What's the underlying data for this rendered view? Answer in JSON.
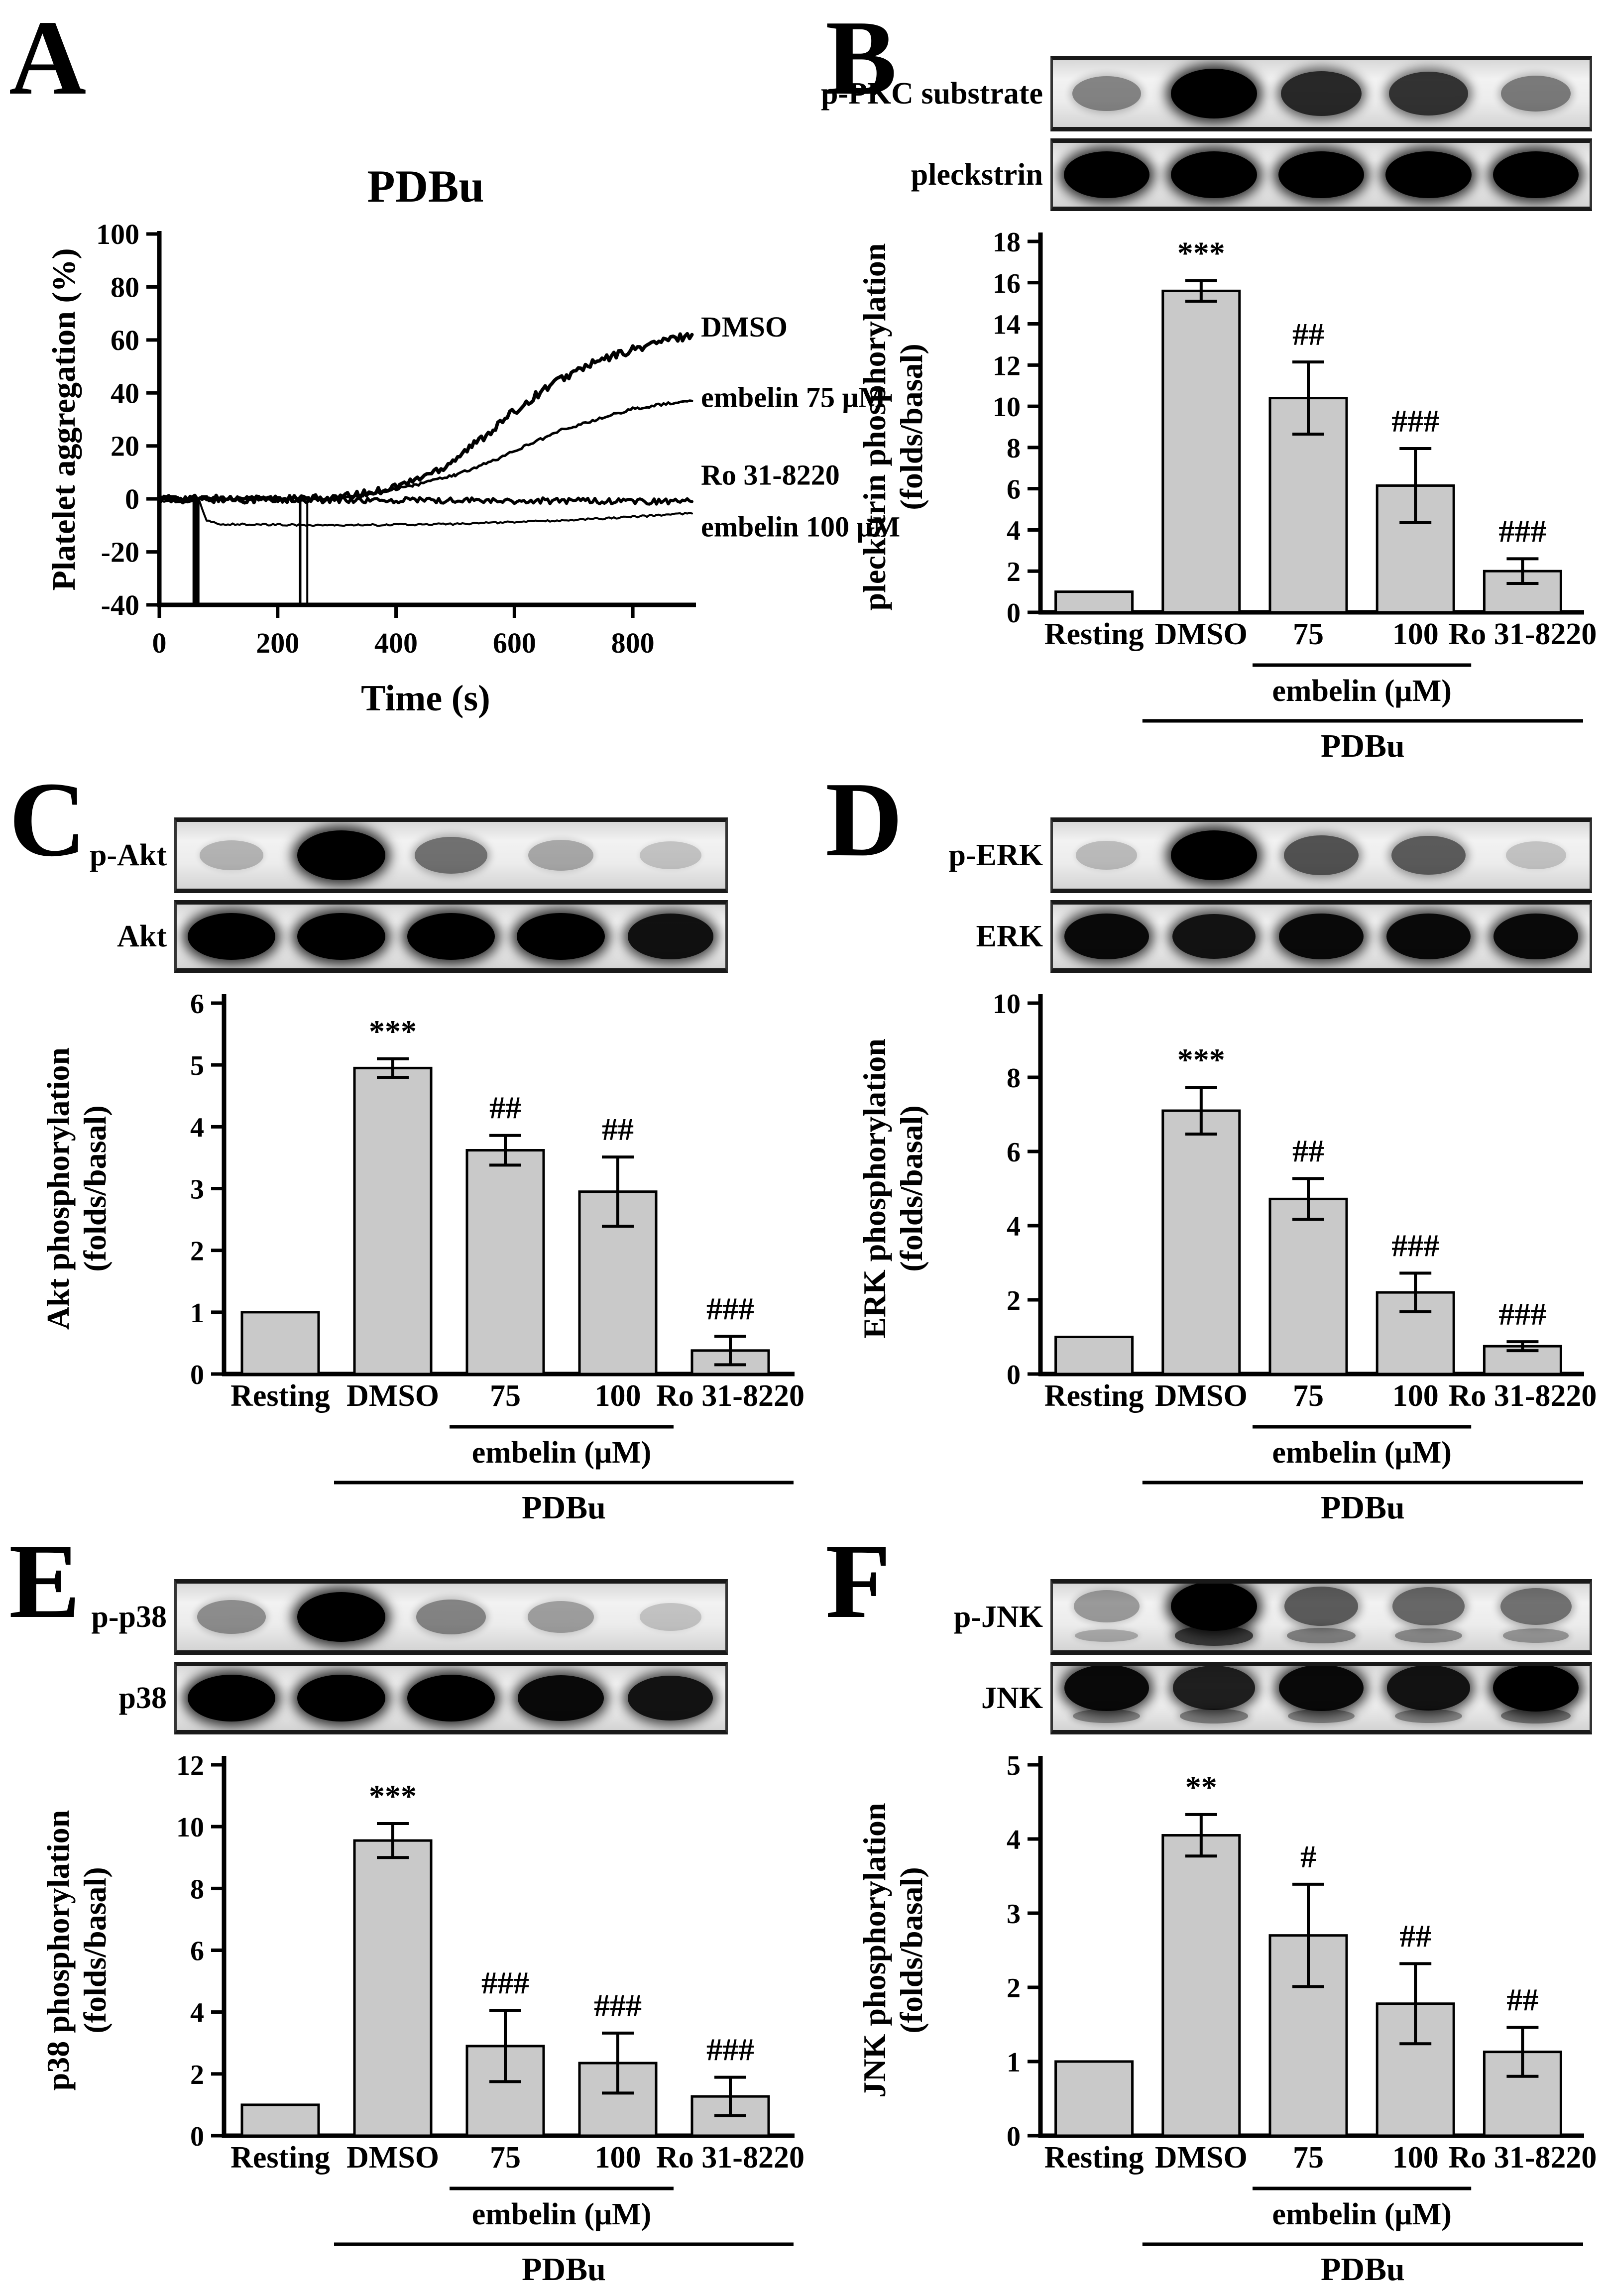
{
  "panels": {
    "A": {
      "letter": "A"
    },
    "B": {
      "letter": "B",
      "blots": [
        {
          "label": "p-PKC substrate",
          "bands": [
            0.35,
            1,
            0.8,
            0.75,
            0.4
          ]
        },
        {
          "label": "pleckstrin",
          "bands": [
            1,
            1,
            1,
            1,
            1
          ]
        }
      ]
    },
    "C": {
      "letter": "C",
      "blots": [
        {
          "label": "p-Akt",
          "bands": [
            0.12,
            1,
            0.45,
            0.18,
            0.05
          ]
        },
        {
          "label": "Akt",
          "bands": [
            1,
            1,
            1,
            1,
            0.92
          ]
        }
      ]
    },
    "D": {
      "letter": "D",
      "blots": [
        {
          "label": "p-ERK",
          "bands": [
            0.08,
            1,
            0.6,
            0.55,
            0.05
          ]
        },
        {
          "label": "ERK",
          "bands": [
            0.95,
            0.9,
            0.95,
            0.95,
            0.95
          ]
        }
      ]
    },
    "E": {
      "letter": "E",
      "blots": [
        {
          "label": "p-p38",
          "bands": [
            0.3,
            1,
            0.35,
            0.22,
            0.05
          ]
        },
        {
          "label": "p38",
          "bands": [
            1,
            1,
            1,
            0.95,
            0.9
          ]
        }
      ]
    },
    "F": {
      "letter": "F",
      "blots": [
        {
          "label": "p-JNK",
          "bands": [
            0.25,
            1,
            0.55,
            0.5,
            0.45
          ],
          "bands2": [
            0.15,
            0.7,
            0.35,
            0.3,
            0.25
          ]
        },
        {
          "label": "JNK",
          "bands": [
            0.95,
            0.85,
            0.95,
            0.9,
            1
          ],
          "bands2": [
            0.3,
            0.35,
            0.3,
            0.3,
            0.4
          ]
        }
      ]
    }
  },
  "chart_data": [
    {
      "panel": "A",
      "type": "line",
      "title": "PDBu",
      "xlabel": "Time (s)",
      "ylabel": "Platelet aggregation (%)",
      "xlim": [
        0,
        900
      ],
      "ylim": [
        -40,
        100
      ],
      "xticks": [
        0,
        200,
        400,
        600,
        800
      ],
      "ytick_step": 20,
      "series": [
        {
          "name": "DMSO",
          "stroke_width": 7,
          "noise": 1.5,
          "label_dy": -14,
          "points": [
            [
              0,
              0
            ],
            [
              290,
              0
            ],
            [
              350,
              2
            ],
            [
              420,
              6
            ],
            [
              480,
              12
            ],
            [
              540,
              22
            ],
            [
              600,
              33
            ],
            [
              660,
              43
            ],
            [
              720,
              50
            ],
            [
              780,
              55
            ],
            [
              840,
              59
            ],
            [
              900,
              62
            ]
          ]
        },
        {
          "name": "embelin 75 μM",
          "stroke_width": 5,
          "noise": 0.5,
          "label_dy": -6,
          "points": [
            [
              0,
              0
            ],
            [
              300,
              0
            ],
            [
              360,
              2
            ],
            [
              430,
              5
            ],
            [
              500,
              9
            ],
            [
              560,
              14
            ],
            [
              620,
              20
            ],
            [
              680,
              26
            ],
            [
              740,
              30
            ],
            [
              800,
              34
            ],
            [
              860,
              36
            ],
            [
              900,
              37
            ]
          ]
        },
        {
          "name": "Ro 31-8220",
          "stroke_width": 6,
          "noise": 1.1,
          "label_dy": -52,
          "points": [
            [
              0,
              0
            ],
            [
              900,
              -1
            ]
          ]
        },
        {
          "name": "embelin 100 μM",
          "stroke_width": 4,
          "noise": 0.35,
          "label_dy": 28,
          "points": [
            [
              0,
              -1
            ],
            [
              68,
              -1
            ],
            [
              80,
              -8
            ],
            [
              100,
              -9.5
            ],
            [
              300,
              -10
            ],
            [
              500,
              -9.5
            ],
            [
              700,
              -8
            ],
            [
              900,
              -5.5
            ]
          ]
        }
      ],
      "spikes": [
        {
          "t": 62,
          "w": 14
        },
        {
          "t": 238,
          "w": 5
        },
        {
          "t": 250,
          "w": 4
        }
      ]
    },
    {
      "panel": "B",
      "type": "bar",
      "ylabel_lines": [
        "pleckstrin phosphorylation",
        "(folds/basal)"
      ],
      "ylim": [
        0,
        18
      ],
      "ytick_step": 2,
      "categories": [
        "Resting",
        "DMSO",
        "75",
        "100",
        "Ro 31-8220"
      ],
      "values": [
        1,
        15.6,
        10.4,
        6.15,
        2
      ],
      "errors": [
        0,
        0.5,
        1.75,
        1.8,
        0.6
      ],
      "significance": [
        "",
        "***",
        "##",
        "###",
        "###"
      ],
      "group_labels": [
        {
          "label": "embelin (μM)",
          "from": 2,
          "to": 3
        },
        {
          "label": "PDBu",
          "from": 1,
          "to": 4
        }
      ]
    },
    {
      "panel": "C",
      "type": "bar",
      "ylabel_lines": [
        "Akt phosphorylation",
        "(folds/basal)"
      ],
      "ylim": [
        0,
        6
      ],
      "ytick_step": 1,
      "categories": [
        "Resting",
        "DMSO",
        "75",
        "100",
        "Ro 31-8220"
      ],
      "values": [
        1,
        4.95,
        3.62,
        2.95,
        0.38
      ],
      "errors": [
        0,
        0.15,
        0.24,
        0.56,
        0.23
      ],
      "significance": [
        "",
        "***",
        "##",
        "##",
        "###"
      ],
      "group_labels": [
        {
          "label": "embelin (μM)",
          "from": 2,
          "to": 3
        },
        {
          "label": "PDBu",
          "from": 1,
          "to": 4
        }
      ]
    },
    {
      "panel": "D",
      "type": "bar",
      "ylabel_lines": [
        "ERK phosphorylation",
        "(folds/basal)"
      ],
      "ylim": [
        0,
        10
      ],
      "ytick_step": 2,
      "categories": [
        "Resting",
        "DMSO",
        "75",
        "100",
        "Ro 31-8220"
      ],
      "values": [
        1,
        7.1,
        4.72,
        2.2,
        0.75
      ],
      "errors": [
        0,
        0.63,
        0.55,
        0.52,
        0.12
      ],
      "significance": [
        "",
        "***",
        "##",
        "###",
        "###"
      ],
      "group_labels": [
        {
          "label": "embelin (μM)",
          "from": 2,
          "to": 3
        },
        {
          "label": "PDBu",
          "from": 1,
          "to": 4
        }
      ]
    },
    {
      "panel": "E",
      "type": "bar",
      "ylabel_lines": [
        "p38 phosphorylation",
        "(folds/basal)"
      ],
      "ylim": [
        0,
        12
      ],
      "ytick_step": 2,
      "categories": [
        "Resting",
        "DMSO",
        "75",
        "100",
        "Ro 31-8220"
      ],
      "values": [
        1,
        9.55,
        2.9,
        2.35,
        1.27
      ],
      "errors": [
        0,
        0.55,
        1.15,
        0.97,
        0.62
      ],
      "significance": [
        "",
        "***",
        "###",
        "###",
        "###"
      ],
      "group_labels": [
        {
          "label": "embelin (μM)",
          "from": 2,
          "to": 3
        },
        {
          "label": "PDBu",
          "from": 1,
          "to": 4
        }
      ]
    },
    {
      "panel": "F",
      "type": "bar",
      "ylabel_lines": [
        "JNK phosphorylation",
        "(folds/basal)"
      ],
      "ylim": [
        0,
        5
      ],
      "ytick_step": 1,
      "categories": [
        "Resting",
        "DMSO",
        "75",
        "100",
        "Ro 31-8220"
      ],
      "values": [
        1,
        4.05,
        2.7,
        1.78,
        1.13
      ],
      "errors": [
        0,
        0.28,
        0.69,
        0.54,
        0.33
      ],
      "significance": [
        "",
        "**",
        "#",
        "##",
        "##"
      ],
      "group_labels": [
        {
          "label": "embelin (μM)",
          "from": 2,
          "to": 3
        },
        {
          "label": "PDBu",
          "from": 1,
          "to": 4
        }
      ]
    }
  ]
}
